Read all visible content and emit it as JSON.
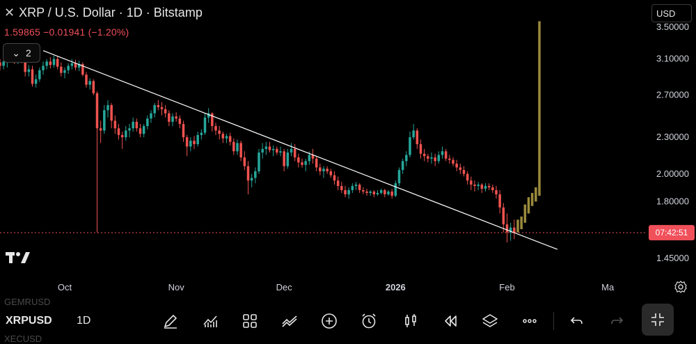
{
  "header": {
    "close_icon": "close-icon",
    "title": "XRP / U.S. Dollar · 1D · Bitstamp",
    "price_change": "1.59865  −0.01941 (−1.20%)",
    "indicator_count": "2",
    "currency": "USD"
  },
  "bottom_bar": {
    "ghost_above": "GEMRUSD",
    "ghost_below": "XECUSD",
    "symbol": "XRPUSD",
    "timeframe": "1D",
    "tools": [
      "pencil-icon",
      "indicators-icon",
      "grid-icon",
      "trendline-icon",
      "plus-circle-icon",
      "alarm-icon",
      "candles-icon",
      "replay-icon",
      "layers-icon",
      "more-icon",
      "undo-icon",
      "redo-icon",
      "fullscreen-icon"
    ]
  },
  "colors": {
    "up": "#26a69a",
    "down": "#ef5350",
    "projection": "#9a8a3c",
    "trendline": "#ffffff",
    "last_price": "#f0505a"
  },
  "chart_data": {
    "type": "candlestick",
    "title": "XRP / U.S. Dollar · 1D · Bitstamp",
    "y_axis_ticks": [
      "3.50000",
      "3.10000",
      "2.70000",
      "2.30000",
      "2.00000",
      "1.80000",
      "1.45000"
    ],
    "y_axis_scale": "log",
    "ylim": [
      1.36,
      3.78
    ],
    "x_axis_ticks": [
      "Oct",
      "Nov",
      "Dec",
      "2026",
      "Feb",
      "Ma"
    ],
    "xlim": [
      "2025-09-13",
      "2026-03-12"
    ],
    "last_price_label": "07:42:51",
    "last_price_value": 1.59865,
    "trendline": {
      "start": [
        "2025-09-25",
        3.2
      ],
      "end": [
        "2026-02-15",
        1.5
      ]
    },
    "candles": [
      [
        "2025-09-13",
        3.06,
        3.1,
        2.97,
        3.02
      ],
      [
        "2025-09-14",
        3.02,
        3.11,
        2.98,
        3.07
      ],
      [
        "2025-09-15",
        3.07,
        3.14,
        3.0,
        3.1
      ],
      [
        "2025-09-16",
        3.1,
        3.17,
        3.06,
        3.13
      ],
      [
        "2025-09-17",
        3.13,
        3.18,
        3.04,
        3.06
      ],
      [
        "2025-09-18",
        3.06,
        3.2,
        3.04,
        3.15
      ],
      [
        "2025-09-19",
        3.15,
        3.18,
        3.05,
        3.08
      ],
      [
        "2025-09-20",
        3.08,
        3.12,
        2.9,
        2.95
      ],
      [
        "2025-09-21",
        2.95,
        3.03,
        2.9,
        2.98
      ],
      [
        "2025-09-22",
        2.98,
        3.02,
        2.79,
        2.82
      ],
      [
        "2025-09-23",
        2.82,
        2.92,
        2.78,
        2.87
      ],
      [
        "2025-09-24",
        2.87,
        3.0,
        2.84,
        2.97
      ],
      [
        "2025-09-25",
        2.97,
        3.07,
        2.92,
        3.02
      ],
      [
        "2025-09-26",
        3.02,
        3.1,
        2.98,
        3.07
      ],
      [
        "2025-09-27",
        3.07,
        3.12,
        2.99,
        3.03
      ],
      [
        "2025-09-28",
        3.03,
        3.14,
        3.0,
        3.1
      ],
      [
        "2025-09-29",
        3.1,
        3.13,
        2.98,
        3.01
      ],
      [
        "2025-09-30",
        3.01,
        3.06,
        2.9,
        2.94
      ],
      [
        "2025-10-01",
        2.94,
        3.0,
        2.88,
        2.97
      ],
      [
        "2025-10-02",
        2.97,
        3.05,
        2.93,
        3.02
      ],
      [
        "2025-10-03",
        3.02,
        3.1,
        2.98,
        3.05
      ],
      [
        "2025-10-04",
        3.05,
        3.09,
        2.97,
        3.0
      ],
      [
        "2025-10-05",
        3.0,
        3.08,
        2.96,
        3.04
      ],
      [
        "2025-10-06",
        3.04,
        3.06,
        2.9,
        2.92
      ],
      [
        "2025-10-07",
        2.92,
        2.95,
        2.78,
        2.81
      ],
      [
        "2025-10-08",
        2.81,
        2.88,
        2.76,
        2.85
      ],
      [
        "2025-10-09",
        2.85,
        2.87,
        2.7,
        2.72
      ],
      [
        "2025-10-10",
        2.72,
        2.74,
        1.6,
        2.38
      ],
      [
        "2025-10-11",
        2.38,
        2.45,
        2.25,
        2.36
      ],
      [
        "2025-10-12",
        2.36,
        2.6,
        2.33,
        2.55
      ],
      [
        "2025-10-13",
        2.55,
        2.65,
        2.48,
        2.6
      ],
      [
        "2025-10-14",
        2.6,
        2.62,
        2.38,
        2.45
      ],
      [
        "2025-10-15",
        2.45,
        2.5,
        2.33,
        2.38
      ],
      [
        "2025-10-16",
        2.38,
        2.42,
        2.28,
        2.32
      ],
      [
        "2025-10-17",
        2.32,
        2.35,
        2.2,
        2.3
      ],
      [
        "2025-10-18",
        2.3,
        2.4,
        2.27,
        2.36
      ],
      [
        "2025-10-19",
        2.36,
        2.42,
        2.3,
        2.38
      ],
      [
        "2025-10-20",
        2.38,
        2.48,
        2.35,
        2.44
      ],
      [
        "2025-10-21",
        2.44,
        2.47,
        2.35,
        2.38
      ],
      [
        "2025-10-22",
        2.38,
        2.42,
        2.3,
        2.33
      ],
      [
        "2025-10-23",
        2.33,
        2.42,
        2.3,
        2.4
      ],
      [
        "2025-10-24",
        2.4,
        2.5,
        2.37,
        2.47
      ],
      [
        "2025-10-25",
        2.47,
        2.55,
        2.43,
        2.52
      ],
      [
        "2025-10-26",
        2.52,
        2.62,
        2.48,
        2.6
      ],
      [
        "2025-10-27",
        2.6,
        2.65,
        2.55,
        2.58
      ],
      [
        "2025-10-28",
        2.58,
        2.63,
        2.5,
        2.56
      ],
      [
        "2025-10-29",
        2.56,
        2.6,
        2.48,
        2.52
      ],
      [
        "2025-10-30",
        2.52,
        2.55,
        2.4,
        2.44
      ],
      [
        "2025-10-31",
        2.44,
        2.52,
        2.4,
        2.49
      ],
      [
        "2025-11-01",
        2.49,
        2.53,
        2.44,
        2.47
      ],
      [
        "2025-11-02",
        2.47,
        2.5,
        2.38,
        2.42
      ],
      [
        "2025-11-03",
        2.42,
        2.45,
        2.26,
        2.3
      ],
      [
        "2025-11-04",
        2.3,
        2.32,
        2.14,
        2.22
      ],
      [
        "2025-11-05",
        2.22,
        2.3,
        2.18,
        2.27
      ],
      [
        "2025-11-06",
        2.27,
        2.31,
        2.2,
        2.24
      ],
      [
        "2025-11-07",
        2.24,
        2.35,
        2.22,
        2.32
      ],
      [
        "2025-11-08",
        2.32,
        2.37,
        2.28,
        2.34
      ],
      [
        "2025-11-09",
        2.34,
        2.52,
        2.32,
        2.48
      ],
      [
        "2025-11-10",
        2.48,
        2.57,
        2.43,
        2.52
      ],
      [
        "2025-11-11",
        2.52,
        2.53,
        2.35,
        2.4
      ],
      [
        "2025-11-12",
        2.4,
        2.43,
        2.32,
        2.36
      ],
      [
        "2025-11-13",
        2.36,
        2.4,
        2.28,
        2.33
      ],
      [
        "2025-11-14",
        2.33,
        2.35,
        2.25,
        2.29
      ],
      [
        "2025-11-15",
        2.29,
        2.33,
        2.25,
        2.31
      ],
      [
        "2025-11-16",
        2.31,
        2.34,
        2.23,
        2.26
      ],
      [
        "2025-11-17",
        2.26,
        2.29,
        2.15,
        2.18
      ],
      [
        "2025-11-18",
        2.18,
        2.28,
        2.15,
        2.25
      ],
      [
        "2025-11-19",
        2.25,
        2.27,
        2.1,
        2.13
      ],
      [
        "2025-11-20",
        2.13,
        2.18,
        2.03,
        2.06
      ],
      [
        "2025-11-21",
        2.06,
        2.1,
        1.85,
        1.95
      ],
      [
        "2025-11-22",
        1.95,
        2.0,
        1.9,
        1.97
      ],
      [
        "2025-11-23",
        1.97,
        2.05,
        1.93,
        2.02
      ],
      [
        "2025-11-24",
        2.02,
        2.2,
        2.0,
        2.17
      ],
      [
        "2025-11-25",
        2.17,
        2.25,
        2.12,
        2.2
      ],
      [
        "2025-11-26",
        2.2,
        2.26,
        2.15,
        2.22
      ],
      [
        "2025-11-27",
        2.22,
        2.26,
        2.17,
        2.19
      ],
      [
        "2025-11-28",
        2.19,
        2.23,
        2.14,
        2.2
      ],
      [
        "2025-11-29",
        2.2,
        2.22,
        2.15,
        2.17
      ],
      [
        "2025-11-30",
        2.17,
        2.22,
        2.14,
        2.18
      ],
      [
        "2025-12-01",
        2.18,
        2.2,
        2.02,
        2.06
      ],
      [
        "2025-12-02",
        2.06,
        2.2,
        2.04,
        2.17
      ],
      [
        "2025-12-03",
        2.17,
        2.25,
        2.14,
        2.2
      ],
      [
        "2025-12-04",
        2.2,
        2.24,
        2.1,
        2.13
      ],
      [
        "2025-12-05",
        2.13,
        2.16,
        2.05,
        2.09
      ],
      [
        "2025-12-06",
        2.09,
        2.12,
        2.05,
        2.07
      ],
      [
        "2025-12-07",
        2.07,
        2.12,
        2.02,
        2.1
      ],
      [
        "2025-12-08",
        2.1,
        2.18,
        2.07,
        2.15
      ],
      [
        "2025-12-09",
        2.15,
        2.2,
        2.08,
        2.12
      ],
      [
        "2025-12-10",
        2.12,
        2.14,
        2.02,
        2.05
      ],
      [
        "2025-12-11",
        2.05,
        2.08,
        1.99,
        2.02
      ],
      [
        "2025-12-12",
        2.02,
        2.06,
        1.97,
        2.04
      ],
      [
        "2025-12-13",
        2.04,
        2.06,
        2.0,
        2.02
      ],
      [
        "2025-12-14",
        2.02,
        2.04,
        1.97,
        1.99
      ],
      [
        "2025-12-15",
        1.99,
        2.02,
        1.92,
        1.95
      ],
      [
        "2025-12-16",
        1.95,
        1.98,
        1.88,
        1.91
      ],
      [
        "2025-12-17",
        1.91,
        1.94,
        1.86,
        1.88
      ],
      [
        "2025-12-18",
        1.88,
        1.91,
        1.83,
        1.85
      ],
      [
        "2025-12-19",
        1.85,
        1.9,
        1.82,
        1.88
      ],
      [
        "2025-12-20",
        1.88,
        1.93,
        1.86,
        1.91
      ],
      [
        "2025-12-21",
        1.91,
        1.94,
        1.88,
        1.92
      ],
      [
        "2025-12-22",
        1.92,
        1.93,
        1.86,
        1.88
      ],
      [
        "2025-12-23",
        1.88,
        1.9,
        1.85,
        1.87
      ],
      [
        "2025-12-24",
        1.87,
        1.89,
        1.84,
        1.86
      ],
      [
        "2025-12-25",
        1.86,
        1.88,
        1.84,
        1.87
      ],
      [
        "2025-12-26",
        1.87,
        1.88,
        1.83,
        1.85
      ],
      [
        "2025-12-27",
        1.85,
        1.88,
        1.84,
        1.86
      ],
      [
        "2025-12-28",
        1.86,
        1.89,
        1.85,
        1.88
      ],
      [
        "2025-12-29",
        1.88,
        1.89,
        1.83,
        1.85
      ],
      [
        "2025-12-30",
        1.85,
        1.88,
        1.84,
        1.87
      ],
      [
        "2025-12-31",
        1.87,
        1.89,
        1.82,
        1.84
      ],
      [
        "2026-01-01",
        1.84,
        1.95,
        1.83,
        1.93
      ],
      [
        "2026-01-02",
        1.93,
        2.05,
        1.91,
        2.03
      ],
      [
        "2026-01-03",
        2.03,
        2.12,
        2.0,
        2.1
      ],
      [
        "2026-01-04",
        2.1,
        2.18,
        2.06,
        2.15
      ],
      [
        "2026-01-05",
        2.15,
        2.35,
        2.13,
        2.3
      ],
      [
        "2026-01-06",
        2.3,
        2.42,
        2.28,
        2.36
      ],
      [
        "2026-01-07",
        2.36,
        2.38,
        2.2,
        2.24
      ],
      [
        "2026-01-08",
        2.24,
        2.28,
        2.12,
        2.16
      ],
      [
        "2026-01-09",
        2.16,
        2.2,
        2.1,
        2.14
      ],
      [
        "2026-01-10",
        2.14,
        2.16,
        2.09,
        2.12
      ],
      [
        "2026-01-11",
        2.12,
        2.17,
        2.08,
        2.13
      ],
      [
        "2026-01-12",
        2.13,
        2.16,
        2.06,
        2.1
      ],
      [
        "2026-01-13",
        2.1,
        2.18,
        2.08,
        2.15
      ],
      [
        "2026-01-14",
        2.15,
        2.22,
        2.12,
        2.18
      ],
      [
        "2026-01-15",
        2.18,
        2.2,
        2.1,
        2.12
      ],
      [
        "2026-01-16",
        2.12,
        2.15,
        2.08,
        2.11
      ],
      [
        "2026-01-17",
        2.11,
        2.13,
        2.06,
        2.08
      ],
      [
        "2026-01-18",
        2.08,
        2.11,
        2.02,
        2.05
      ],
      [
        "2026-01-19",
        2.05,
        2.08,
        2.0,
        2.03
      ],
      [
        "2026-01-20",
        2.03,
        2.06,
        1.98,
        2.0
      ],
      [
        "2026-01-21",
        2.0,
        2.02,
        1.92,
        1.95
      ],
      [
        "2026-01-22",
        1.95,
        1.98,
        1.88,
        1.92
      ],
      [
        "2026-01-23",
        1.92,
        1.95,
        1.87,
        1.91
      ],
      [
        "2026-01-24",
        1.91,
        1.94,
        1.88,
        1.92
      ],
      [
        "2026-01-25",
        1.92,
        1.93,
        1.86,
        1.89
      ],
      [
        "2026-01-26",
        1.89,
        1.93,
        1.87,
        1.91
      ],
      [
        "2026-01-27",
        1.91,
        1.93,
        1.88,
        1.9
      ],
      [
        "2026-01-28",
        1.9,
        1.92,
        1.86,
        1.88
      ],
      [
        "2026-01-29",
        1.88,
        1.91,
        1.82,
        1.85
      ],
      [
        "2026-01-30",
        1.85,
        1.88,
        1.72,
        1.76
      ],
      [
        "2026-01-31",
        1.76,
        1.79,
        1.6,
        1.65
      ],
      [
        "2026-02-01",
        1.65,
        1.72,
        1.54,
        1.6
      ],
      [
        "2026-02-02",
        1.6,
        1.66,
        1.55,
        1.63
      ],
      [
        "2026-02-03",
        1.63,
        1.68,
        1.56,
        1.6
      ]
    ],
    "projection_bars": [
      [
        "2026-02-04",
        1.6,
        1.68
      ],
      [
        "2026-02-05",
        1.62,
        1.7
      ],
      [
        "2026-02-06",
        1.66,
        1.78
      ],
      [
        "2026-02-07",
        1.72,
        1.83
      ],
      [
        "2026-02-08",
        1.77,
        1.86
      ],
      [
        "2026-02-09",
        1.8,
        1.9
      ],
      [
        "2026-02-10",
        1.84,
        3.58
      ]
    ]
  }
}
